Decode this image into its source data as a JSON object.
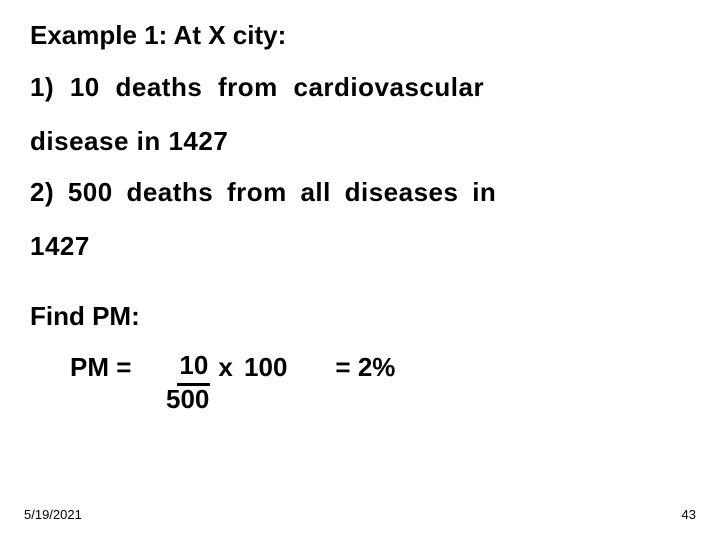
{
  "title": "Example 1: At X city:",
  "line1a": "1) 10 deaths from cardiovascular",
  "line1b": "disease in 1427",
  "line2a": "2) 500 deaths from all diseases in",
  "line2b": "1427",
  "findPM": "Find PM:",
  "pmLabel": "PM =",
  "numerator": "10",
  "times100": "x 100",
  "denominator": "500",
  "result": "= 2%",
  "footerDate": "5/19/2021",
  "footerPage": "43"
}
